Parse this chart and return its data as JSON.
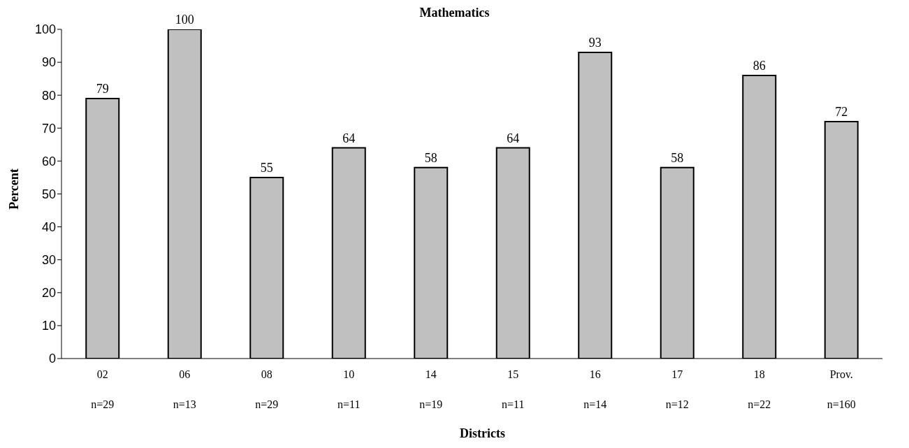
{
  "chart_data": {
    "type": "bar",
    "title": "Mathematics",
    "xlabel": "Districts",
    "ylabel": "Percent",
    "categories": [
      "02\nn=29",
      "06\nn=13",
      "08\nn=29",
      "10\nn=11",
      "14\nn=19",
      "15\nn=11",
      "16\nn=14",
      "17\nn=12",
      "18\nn=22",
      "Prov.\nn=160"
    ],
    "values": [
      79,
      100,
      55,
      64,
      58,
      64,
      93,
      58,
      86,
      72
    ],
    "color": "#c0c0c0",
    "ylim": [
      0,
      100
    ],
    "yticks": [
      0,
      10,
      20,
      30,
      40,
      50,
      60,
      70,
      80,
      90,
      100
    ],
    "grid": false,
    "data_labels": true
  }
}
